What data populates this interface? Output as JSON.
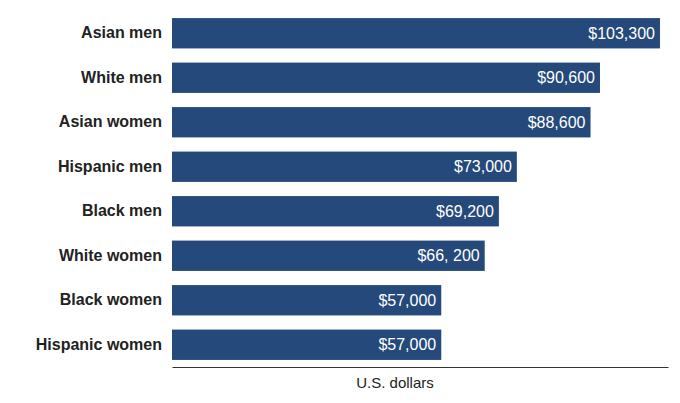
{
  "chart_data": {
    "type": "bar",
    "orientation": "horizontal",
    "categories": [
      "Asian men",
      "White men",
      "Asian women",
      "Hispanic men",
      "Black men",
      "White women",
      "Black women",
      "Hispanic women"
    ],
    "values": [
      103300,
      90600,
      88600,
      73000,
      69200,
      66200,
      57000,
      57000
    ],
    "value_labels": [
      "$103,300",
      "$90,600",
      "$88,600",
      "$73,000",
      "$69,200",
      "$66, 200",
      "$57,000",
      "$57,000"
    ],
    "data_labels": true,
    "color": "#24497a",
    "x_label": "U.S. dollars",
    "xlim": [
      0,
      105000
    ],
    "tick_labels": "y",
    "grid": false
  }
}
